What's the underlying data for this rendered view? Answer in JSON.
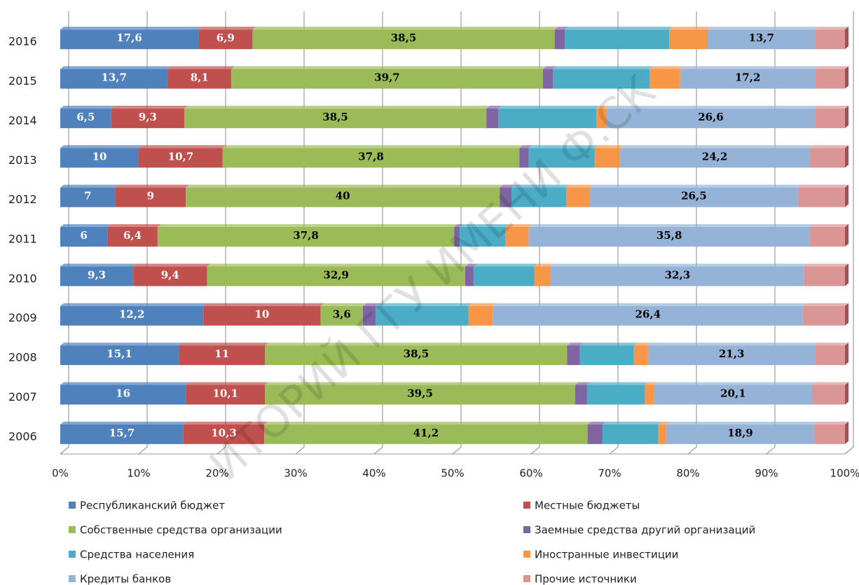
{
  "chart_data": {
    "type": "bar",
    "orientation": "horizontal",
    "stacked": "percent",
    "categories": [
      "2006",
      "2007",
      "2008",
      "2009",
      "2010",
      "2011",
      "2012",
      "2013",
      "2014",
      "2015",
      "2016"
    ],
    "xlim": [
      0,
      100
    ],
    "xticks": [
      {
        "value": 0,
        "label": "0%"
      },
      {
        "value": 10,
        "label": "10%"
      },
      {
        "value": 20,
        "label": "20%"
      },
      {
        "value": 30,
        "label": "30%"
      },
      {
        "value": 40,
        "label": "40%"
      },
      {
        "value": 50,
        "label": "50%"
      },
      {
        "value": 60,
        "label": "60%"
      },
      {
        "value": 70,
        "label": "70%"
      },
      {
        "value": 80,
        "label": "80%"
      },
      {
        "value": 90,
        "label": "90%"
      },
      {
        "value": 100,
        "label": "100%"
      }
    ],
    "grid": true,
    "series": [
      {
        "name": "Республиканский бюджет",
        "color": "#4f81bd",
        "label_color": "#ffffff",
        "values": [
          15.7,
          16,
          15.1,
          12.2,
          9.3,
          6,
          7,
          10,
          6.5,
          13.7,
          17.6
        ],
        "value_labels": [
          "15,7",
          "16",
          "15,1",
          "12,2",
          "9,3",
          "6",
          "7",
          "10",
          "6,5",
          "13,7",
          "17,6"
        ]
      },
      {
        "name": "Местные бюджеты",
        "color": "#c0504d",
        "label_color": "#ffffff",
        "values": [
          10.3,
          10.1,
          11,
          10,
          9.4,
          6.4,
          9,
          10.7,
          9.3,
          8.1,
          6.9
        ],
        "value_labels": [
          "10,3",
          "10,1",
          "11",
          "10",
          "9,4",
          "6,4",
          "9",
          "10,7",
          "9,3",
          "8,1",
          "6,9"
        ]
      },
      {
        "name": "Собственные средства организации",
        "color": "#9bbb59",
        "label_color": "#000000",
        "values": [
          41.2,
          39.5,
          38.5,
          3.6,
          32.9,
          37.8,
          40,
          37.8,
          38.5,
          39.7,
          38.5
        ],
        "value_labels": [
          "41,2",
          "39,5",
          "38,5",
          "3,6",
          "32,9",
          "37,8",
          "40",
          "37,8",
          "38,5",
          "39,7",
          "38,5"
        ]
      },
      {
        "name": "Заемные средства другий организаций",
        "color": "#8064a2",
        "values": [
          1.9,
          1.5,
          1.6,
          1.1,
          1.1,
          0.7,
          1.5,
          1.2,
          1.5,
          1.3,
          1.3
        ]
      },
      {
        "name": "Средства населения",
        "color": "#4bacc6",
        "values": [
          7.1,
          7.4,
          6.9,
          7.9,
          7.7,
          5.8,
          7.0,
          8.4,
          12.5,
          12.3,
          13.3
        ]
      },
      {
        "name": "Иностранные инвестиции",
        "color": "#f79646",
        "values": [
          1.0,
          1.2,
          1.8,
          2.1,
          2.1,
          3.0,
          3.0,
          3.2,
          1.3,
          3.9,
          4.9
        ]
      },
      {
        "name": "Кредиты банков",
        "color": "#95b3d7",
        "label_color": "#000000",
        "values": [
          18.9,
          20.1,
          21.3,
          26.4,
          32.3,
          35.8,
          26.5,
          24.2,
          26.6,
          17.2,
          13.7
        ],
        "value_labels": [
          "18,9",
          "20,1",
          "21,3",
          "26,4",
          "32,3",
          "35,8",
          "26,5",
          "24,2",
          "26,6",
          "17,2",
          "13,7"
        ]
      },
      {
        "name": "Прочие источники",
        "color": "#d99694",
        "values": [
          3.9,
          4.2,
          3.8,
          3.6,
          5.2,
          4.5,
          6.0,
          4.5,
          3.8,
          3.8,
          3.8
        ]
      }
    ],
    "watermark": "ИТОРИЙ ГГУ ИМЕНИ Ф.СК"
  }
}
